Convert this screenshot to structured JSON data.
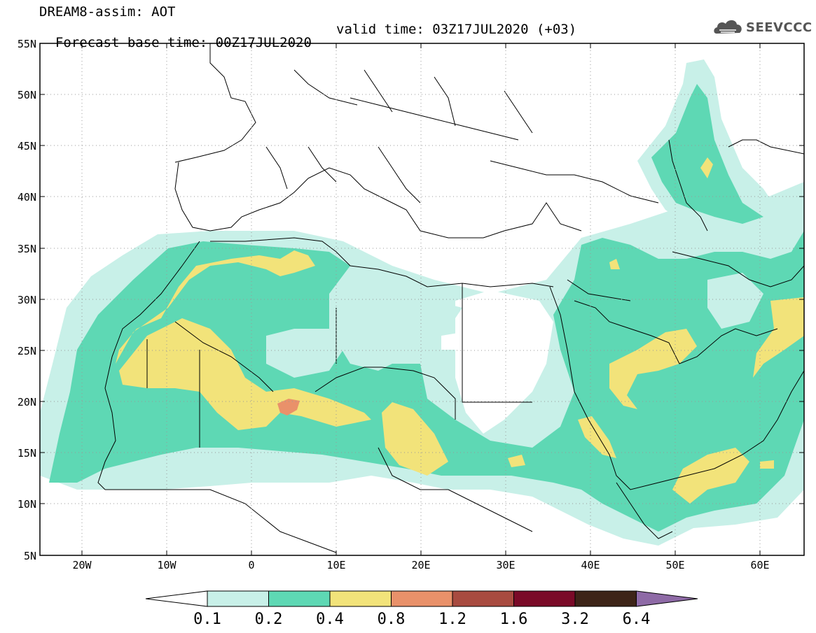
{
  "header": {
    "title_line1": "DREAM8-assim: AOT",
    "base_time": "Forecast base time: 00Z17JUL2020",
    "valid_time": "valid time: 03Z17JUL2020 (+03)",
    "logo_text": "SEEVCCC"
  },
  "axes": {
    "lat_labels": [
      "55N",
      "50N",
      "45N",
      "40N",
      "35N",
      "30N",
      "25N",
      "20N",
      "15N",
      "10N",
      "5N"
    ],
    "lon_labels": [
      "20W",
      "10W",
      "0",
      "10E",
      "20E",
      "30E",
      "40E",
      "50E",
      "60E"
    ]
  },
  "colorbar": {
    "labels": [
      "0.1",
      "0.2",
      "0.4",
      "0.8",
      "1.2",
      "1.6",
      "3.2",
      "6.4"
    ],
    "colors": [
      "#c8f0e8",
      "#5ed8b4",
      "#f2e37a",
      "#e9916a",
      "#a84b40",
      "#7a0a28",
      "#3d2418",
      "#8e6aa6"
    ]
  },
  "field_colors": {
    "light": "#c8f0e8",
    "mid": "#5ed8b4",
    "high": "#f2e37a",
    "peak": "#e9916a"
  }
}
